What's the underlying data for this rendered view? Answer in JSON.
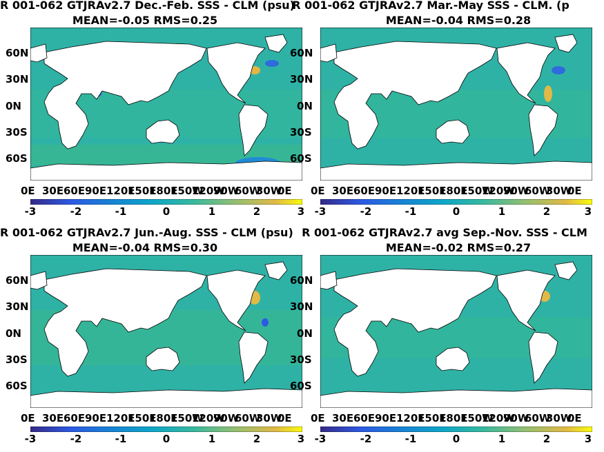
{
  "colorbar": {
    "min": -3,
    "max": 3,
    "ticks": [
      "-3",
      "-2",
      "-1",
      "0",
      "1",
      "2",
      "3"
    ]
  },
  "lon_ticks": [
    "0E",
    "30E",
    "60E",
    "90E",
    "120E",
    "150E",
    "180E",
    "150W",
    "120W",
    "90W",
    "60W",
    "30W",
    "0E"
  ],
  "lat_ticks": [
    "60N",
    "30N",
    "0N",
    "30S",
    "60S"
  ],
  "panels": [
    {
      "title": "R 001-062 GTJRAv2.7  Dec.-Feb. SSS - CLM (psu)",
      "stats": "MEAN=-0.05   RMS=0.25",
      "mean": -0.05,
      "rms": 0.25
    },
    {
      "title": "R 001-062 GTJRAv2.7 Mar.-May SSS - CLM. (p",
      "stats": "MEAN=-0.04   RMS=0.28",
      "mean": -0.04,
      "rms": 0.28
    },
    {
      "title": "R 001-062 GTJRAv2.7 Jun.-Aug. SSS - CLM (psu)",
      "stats": "MEAN=-0.04   RMS=0.30",
      "mean": -0.04,
      "rms": 0.3
    },
    {
      "title": "R 001-062 GTJRAv2.7 avg Sep.-Nov. SSS - CLM",
      "stats": "MEAN=-0.02   RMS=0.27",
      "mean": -0.02,
      "rms": 0.27
    }
  ],
  "chart_data": [
    {
      "type": "heatmap",
      "title": "R 001-062 GTJRAv2.7  Dec.-Feb. SSS - CLM (psu)",
      "subtitle": "MEAN=-0.05   RMS=0.25",
      "colorbar_range": [
        -3,
        3
      ]
    },
    {
      "type": "heatmap",
      "title": "R 001-062 GTJRAv2.7 Mar.-May SSS - CLM. (p",
      "subtitle": "MEAN=-0.04   RMS=0.28",
      "colorbar_range": [
        -3,
        3
      ]
    },
    {
      "type": "heatmap",
      "title": "R 001-062 GTJRAv2.7 Jun.-Aug. SSS - CLM (psu)",
      "subtitle": "MEAN=-0.04   RMS=0.30",
      "colorbar_range": [
        -3,
        3
      ]
    },
    {
      "type": "heatmap",
      "title": "R 001-062 GTJRAv2.7 avg Sep.-Nov. SSS - CLM",
      "subtitle": "MEAN=-0.02   RMS=0.27",
      "colorbar_range": [
        -3,
        3
      ]
    }
  ]
}
